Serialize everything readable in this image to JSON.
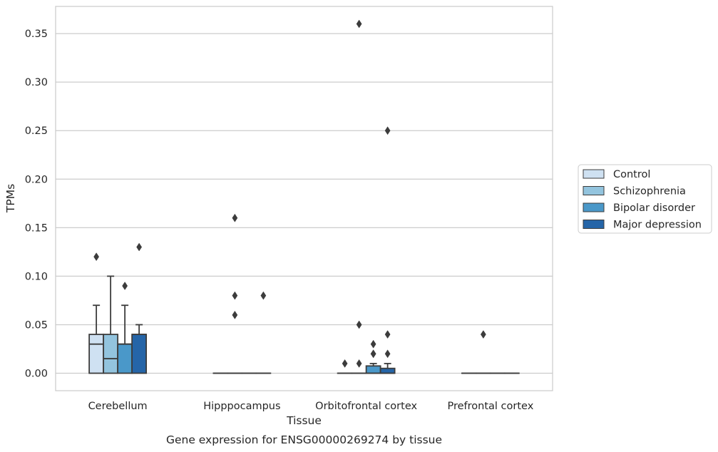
{
  "chart_data": {
    "type": "box",
    "caption": "Gene expression for ENSG00000269274 by tissue",
    "xlabel": "Tissue",
    "ylabel": "TPMs",
    "ylim": [
      -0.018,
      0.378
    ],
    "yticks": [
      "0.00",
      "0.05",
      "0.10",
      "0.15",
      "0.20",
      "0.25",
      "0.30",
      "0.35"
    ],
    "ytick_values": [
      0,
      0.05,
      0.1,
      0.15,
      0.2,
      0.25,
      0.3,
      0.35
    ],
    "categories": [
      "Cerebellum",
      "Hipppocampus",
      "Orbitofrontal cortex",
      "Prefrontal cortex"
    ],
    "grid": "horizontal",
    "legend_position": "right",
    "series": [
      {
        "name": "Control",
        "color": "#cfe1f2",
        "boxes": [
          {
            "q1": 0,
            "median": 0.03,
            "q3": 0.04,
            "whisker_low": 0,
            "whisker_high": 0.07,
            "outliers": [
              0.12
            ]
          },
          {
            "q1": 0,
            "median": 0,
            "q3": 0,
            "whisker_low": 0,
            "whisker_high": 0,
            "outliers": []
          },
          {
            "q1": 0,
            "median": 0,
            "q3": 0,
            "whisker_low": 0,
            "whisker_high": 0,
            "outliers": [
              0.01
            ]
          },
          {
            "q1": 0,
            "median": 0,
            "q3": 0,
            "whisker_low": 0,
            "whisker_high": 0,
            "outliers": []
          }
        ]
      },
      {
        "name": "Schizophrenia",
        "color": "#93c4de",
        "boxes": [
          {
            "q1": 0,
            "median": 0.015,
            "q3": 0.04,
            "whisker_low": 0,
            "whisker_high": 0.1,
            "outliers": []
          },
          {
            "q1": 0,
            "median": 0,
            "q3": 0,
            "whisker_low": 0,
            "whisker_high": 0,
            "outliers": [
              0.06,
              0.08,
              0.16
            ]
          },
          {
            "q1": 0,
            "median": 0,
            "q3": 0,
            "whisker_low": 0,
            "whisker_high": 0,
            "outliers": [
              0.01,
              0.05,
              0.36
            ]
          },
          {
            "q1": 0,
            "median": 0,
            "q3": 0,
            "whisker_low": 0,
            "whisker_high": 0,
            "outliers": [
              0.04
            ]
          }
        ]
      },
      {
        "name": "Bipolar disorder",
        "color": "#4a98c9",
        "boxes": [
          {
            "q1": 0,
            "median": 0.03,
            "q3": 0.03,
            "whisker_low": 0,
            "whisker_high": 0.07,
            "outliers": [
              0.09
            ]
          },
          {
            "q1": 0,
            "median": 0,
            "q3": 0,
            "whisker_low": 0,
            "whisker_high": 0,
            "outliers": []
          },
          {
            "q1": 0,
            "median": 0,
            "q3": 0.0075,
            "whisker_low": 0,
            "whisker_high": 0.01,
            "outliers": [
              0.02,
              0.02,
              0.03
            ]
          },
          {
            "q1": 0,
            "median": 0,
            "q3": 0,
            "whisker_low": 0,
            "whisker_high": 0,
            "outliers": []
          }
        ]
      },
      {
        "name": "Major depression",
        "color": "#2565a8",
        "boxes": [
          {
            "q1": 0,
            "median": 0.04,
            "q3": 0.04,
            "whisker_low": 0,
            "whisker_high": 0.05,
            "outliers": [
              0.13
            ]
          },
          {
            "q1": 0,
            "median": 0,
            "q3": 0,
            "whisker_low": 0,
            "whisker_high": 0,
            "outliers": [
              0.08
            ]
          },
          {
            "q1": 0,
            "median": 0,
            "q3": 0.005,
            "whisker_low": 0,
            "whisker_high": 0.01,
            "outliers": [
              0.02,
              0.04,
              0.25
            ]
          },
          {
            "q1": 0,
            "median": 0,
            "q3": 0,
            "whisker_low": 0,
            "whisker_high": 0,
            "outliers": []
          }
        ]
      }
    ]
  }
}
